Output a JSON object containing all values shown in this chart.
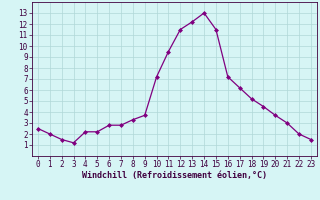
{
  "x": [
    0,
    1,
    2,
    3,
    4,
    5,
    6,
    7,
    8,
    9,
    10,
    11,
    12,
    13,
    14,
    15,
    16,
    17,
    18,
    19,
    20,
    21,
    22,
    23
  ],
  "y": [
    2.5,
    2.0,
    1.5,
    1.2,
    2.2,
    2.2,
    2.8,
    2.8,
    3.3,
    3.7,
    7.2,
    9.5,
    11.5,
    12.2,
    13.0,
    11.5,
    7.2,
    6.2,
    5.2,
    4.5,
    3.7,
    3.0,
    2.0,
    1.5
  ],
  "line_color": "#800080",
  "marker": "D",
  "marker_size": 2,
  "bg_color": "#d6f5f5",
  "grid_color": "#b0d8d8",
  "xlabel": "Windchill (Refroidissement éolien,°C)",
  "xlim": [
    -0.5,
    23.5
  ],
  "ylim": [
    0,
    14
  ],
  "yticks": [
    1,
    2,
    3,
    4,
    5,
    6,
    7,
    8,
    9,
    10,
    11,
    12,
    13
  ],
  "xticks": [
    0,
    1,
    2,
    3,
    4,
    5,
    6,
    7,
    8,
    9,
    10,
    11,
    12,
    13,
    14,
    15,
    16,
    17,
    18,
    19,
    20,
    21,
    22,
    23
  ],
  "tick_fontsize": 5.5,
  "xlabel_fontsize": 6.0,
  "spine_color": "#400040",
  "text_color": "#400040"
}
